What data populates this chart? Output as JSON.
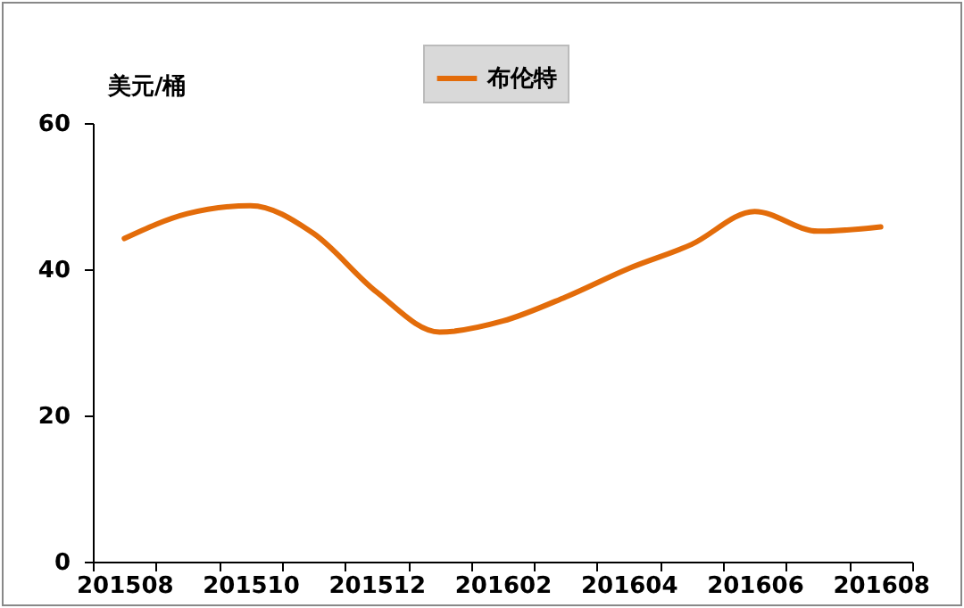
{
  "chart_data": {
    "type": "line",
    "ylabel": "美元/桶",
    "categories": [
      "201508",
      null,
      "201510",
      null,
      "201512",
      null,
      "201602",
      null,
      "201604",
      null,
      "201606",
      null,
      "201608"
    ],
    "series": [
      {
        "name": "布伦特",
        "color": "#e36c0a",
        "values": [
          44.2,
          47.6,
          48.7,
          44.9,
          36.9,
          31.4,
          32.9,
          36.2,
          40.1,
          43.4,
          47.9,
          45.2,
          45.8
        ]
      }
    ],
    "ylim": [
      0,
      60
    ],
    "yticks": [
      0,
      20,
      40,
      60
    ],
    "grid": false,
    "legend": "top",
    "marker": "none",
    "line_style": "solid"
  }
}
